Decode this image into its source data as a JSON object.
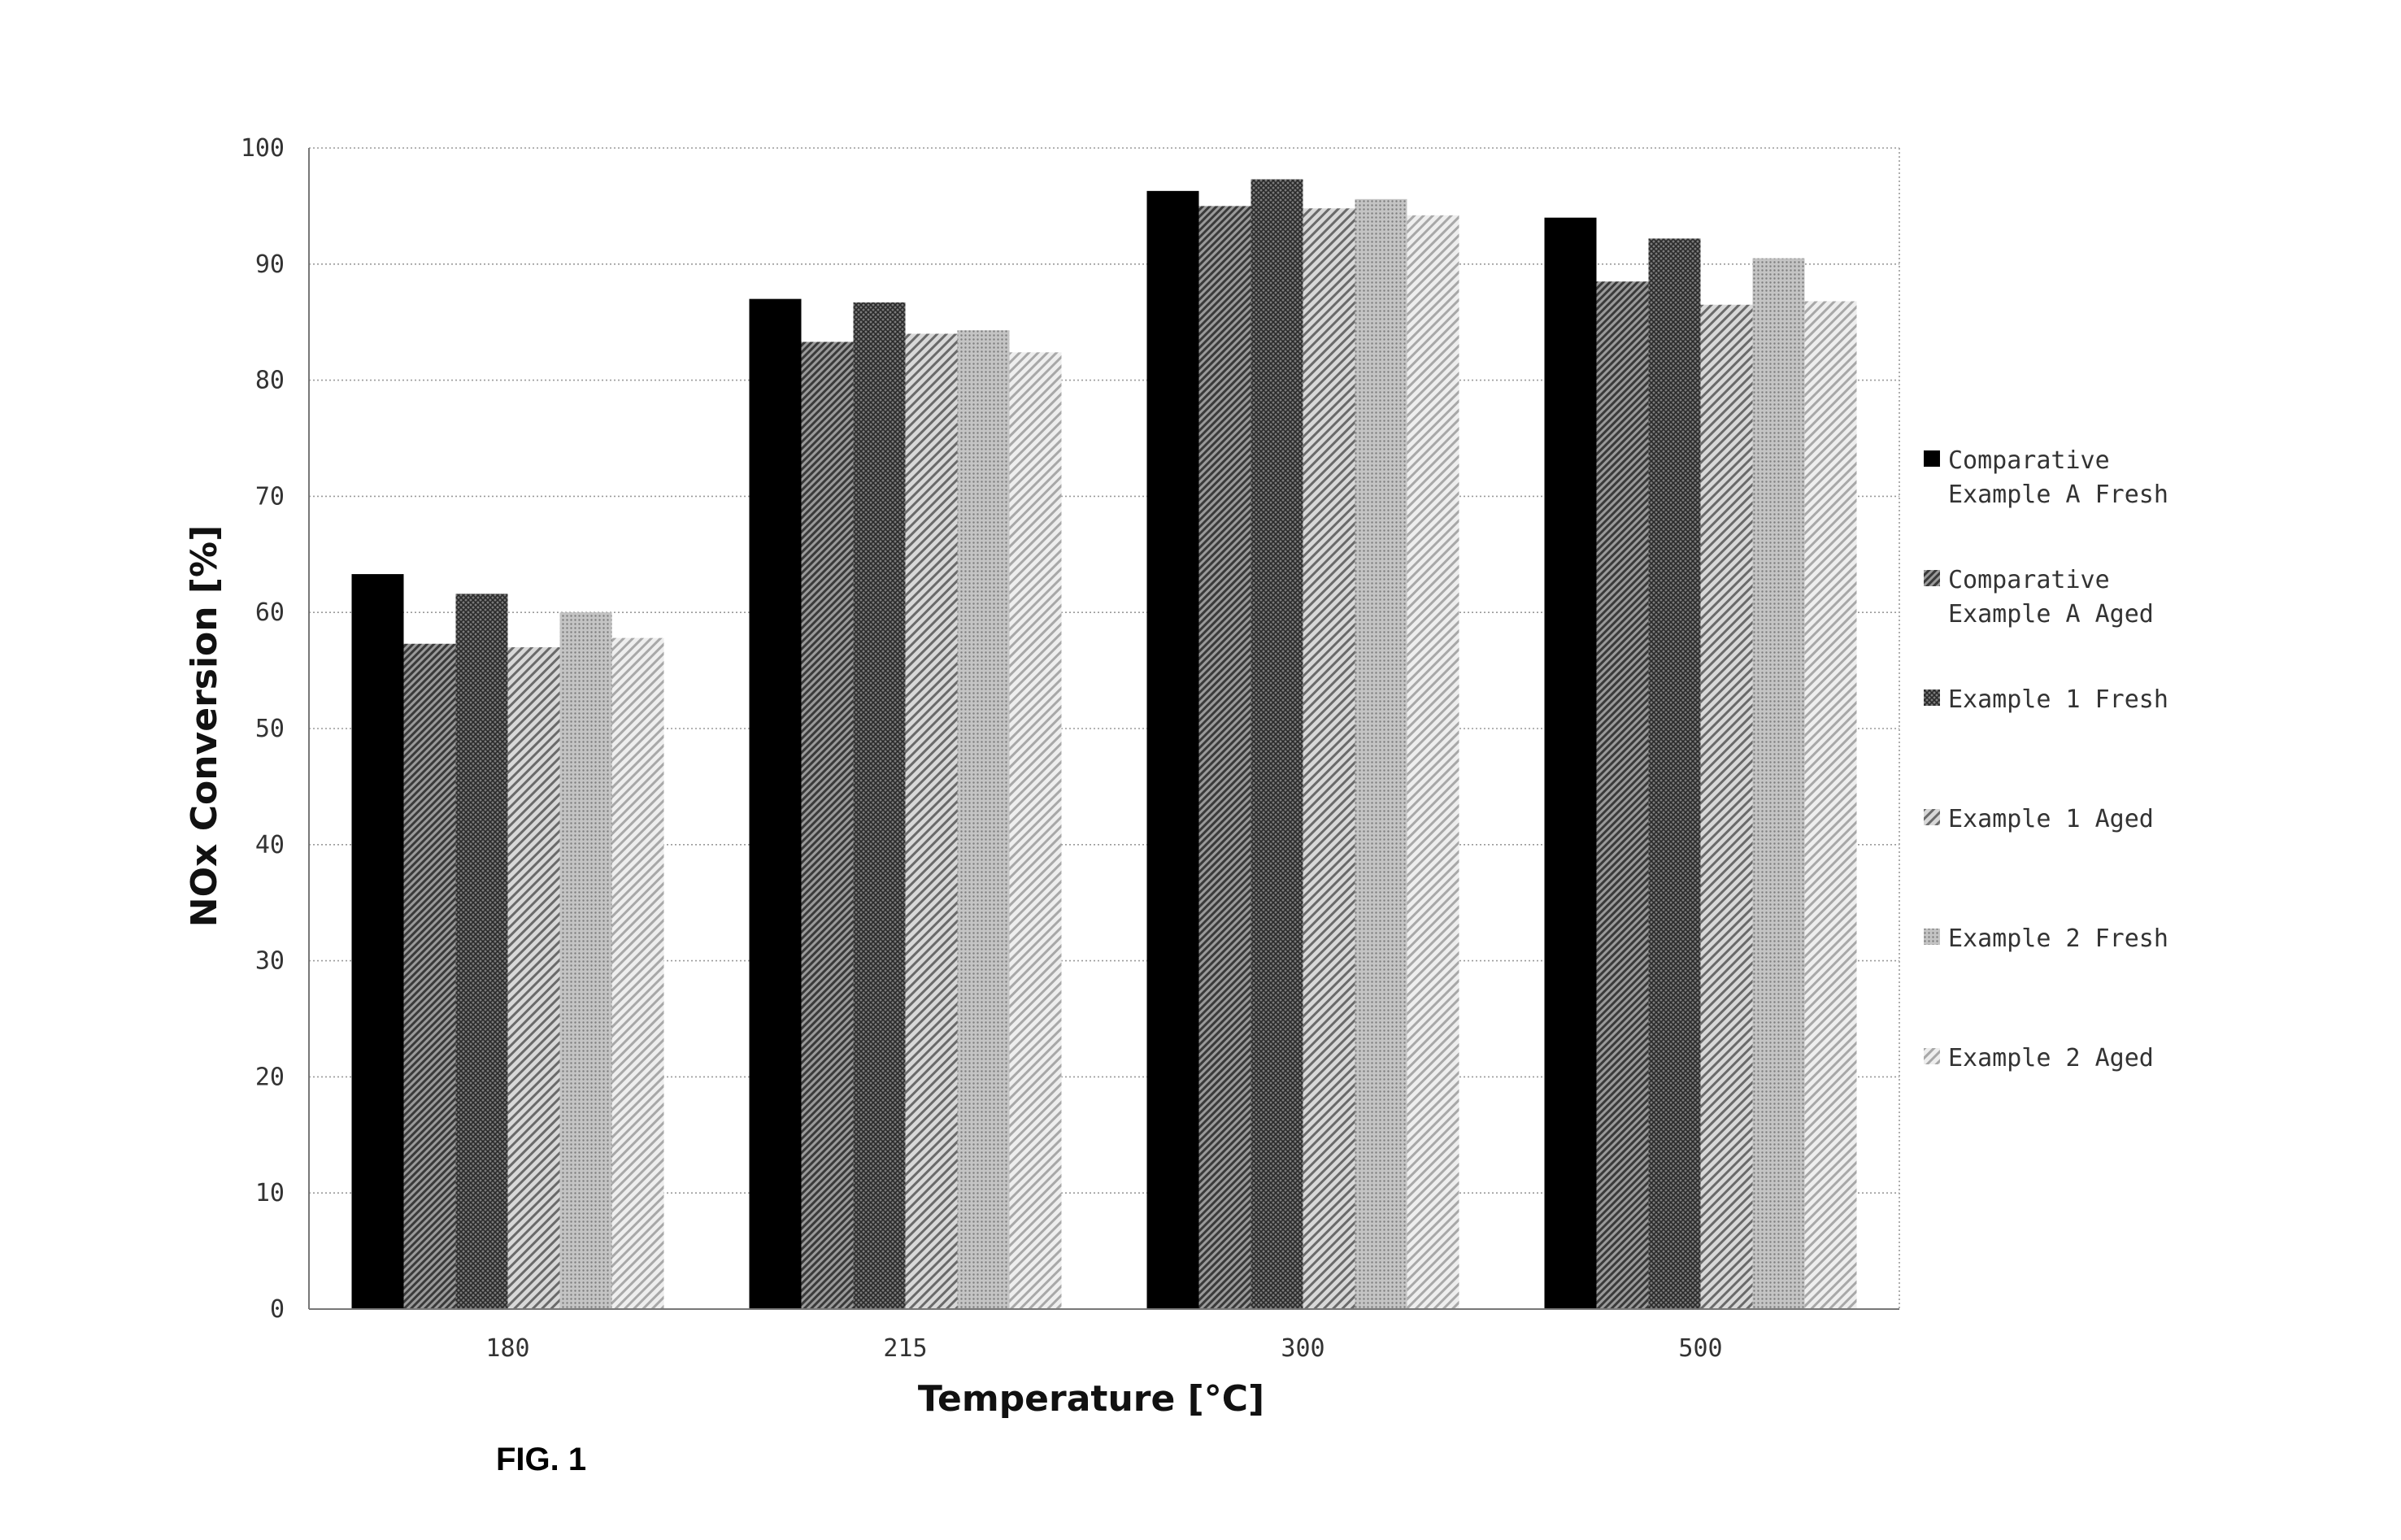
{
  "figure_label": "FIG. 1",
  "chart_data": {
    "type": "bar",
    "title": "",
    "xlabel": "Temperature [°C]",
    "ylabel": "NOx Conversion [%]",
    "ylim": [
      0,
      100
    ],
    "yticks": [
      0,
      10,
      20,
      30,
      40,
      50,
      60,
      70,
      80,
      90,
      100
    ],
    "categories": [
      "180",
      "215",
      "300",
      "500"
    ],
    "grid": true,
    "legend_position": "right",
    "series": [
      {
        "name": "Comparative Example A Fresh",
        "legend_lines": [
          "Comparative",
          "Example A Fresh"
        ],
        "values": [
          63.3,
          87.0,
          96.3,
          94.0
        ],
        "pattern": "solid-black"
      },
      {
        "name": "Comparative Example A Aged",
        "legend_lines": [
          "Comparative",
          "Example A Aged"
        ],
        "values": [
          57.3,
          83.3,
          95.0,
          88.5
        ],
        "pattern": "dense-diagonal"
      },
      {
        "name": "Example 1 Fresh",
        "legend_lines": [
          "Example 1 Fresh"
        ],
        "values": [
          61.6,
          86.7,
          97.3,
          92.2
        ],
        "pattern": "dark-crosshatch"
      },
      {
        "name": "Example 1 Aged",
        "legend_lines": [
          "Example 1 Aged"
        ],
        "values": [
          57.0,
          84.0,
          94.8,
          86.5
        ],
        "pattern": "medium-diagonal"
      },
      {
        "name": "Example 2 Fresh",
        "legend_lines": [
          "Example 2 Fresh"
        ],
        "values": [
          60.0,
          84.3,
          95.6,
          90.5
        ],
        "pattern": "light-dots"
      },
      {
        "name": "Example 2 Aged",
        "legend_lines": [
          "Example 2 Aged"
        ],
        "values": [
          57.8,
          82.4,
          94.2,
          86.8
        ],
        "pattern": "light-diagonal"
      }
    ]
  }
}
